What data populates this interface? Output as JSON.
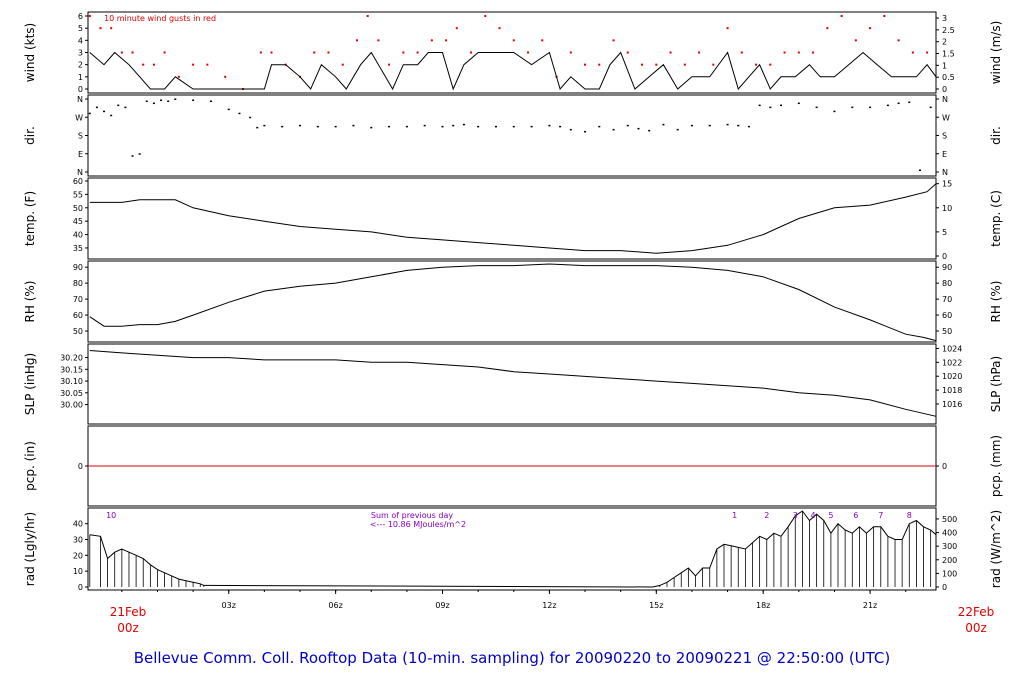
{
  "footer": {
    "title": "Bellevue Comm. Coll. Rooftop Data (10-min. sampling) for 20090220  to  20090221 @ 22:50:00  (UTC)"
  },
  "chart_data": {
    "type": "line",
    "x_axis": {
      "ticks": [
        "03z",
        "06z",
        "09z",
        "12z",
        "15z",
        "18z",
        "21z"
      ],
      "tick_hours": [
        3,
        6,
        9,
        12,
        15,
        18,
        21
      ],
      "start": {
        "day": "21Feb",
        "time": "00z"
      },
      "end": {
        "day": "22Feb",
        "time": "00z"
      },
      "range_hours": [
        -0.95,
        22.85
      ]
    },
    "panels": [
      {
        "id": "wind",
        "ylabel_left": "wind (kts)",
        "ylabel_right": "wind (m/s)",
        "ylim": [
          0,
          6
        ],
        "left_ticks": [
          "0",
          "1",
          "2",
          "3",
          "4",
          "5",
          "6"
        ],
        "right_ticks": [
          "0",
          "0.5",
          "1",
          "1.5",
          "2",
          "2.5",
          "3"
        ],
        "note": "10  minute wind gusts in red",
        "series": [
          {
            "x": [
              -0.9,
              -0.5,
              -0.2,
              0.2,
              0.5,
              0.8,
              1.2,
              1.5,
              2.0,
              2.5,
              3.0,
              3.5,
              4.0,
              4.2,
              4.6,
              5.0,
              5.3,
              5.6,
              6.0,
              6.3,
              6.7,
              7.0,
              7.4,
              7.6,
              7.9,
              8.3,
              8.6,
              9.0,
              9.3,
              9.6,
              10.0,
              10.5,
              11.0,
              11.5,
              12.0,
              12.3,
              12.6,
              13.0,
              13.4,
              13.7,
              14.0,
              14.4,
              14.8,
              15.2,
              15.6,
              16.0,
              16.5,
              17.0,
              17.3,
              17.6,
              17.9,
              18.2,
              18.5,
              18.9,
              19.3,
              19.6,
              20.0,
              20.4,
              20.8,
              21.2,
              21.6,
              22.0,
              22.3,
              22.6,
              22.85
            ],
            "y": [
              3,
              2,
              3,
              2,
              1,
              0,
              0,
              1,
              0,
              0,
              0,
              0,
              0,
              2,
              2,
              1,
              0,
              2,
              1,
              0,
              2,
              3,
              1,
              0,
              2,
              2,
              3,
              3,
              0,
              2,
              3,
              3,
              3,
              2,
              3,
              0,
              1,
              0,
              0,
              2,
              3,
              0,
              1,
              2,
              0,
              1,
              1,
              3,
              0,
              1,
              2,
              0,
              1,
              1,
              2,
              1,
              1,
              2,
              3,
              2,
              1,
              1,
              1,
              2,
              1
            ]
          }
        ],
        "gusts": {
          "x": [
            -0.9,
            -0.6,
            -0.3,
            0.0,
            0.3,
            0.6,
            0.9,
            1.2,
            1.6,
            2.0,
            2.4,
            2.9,
            3.4,
            3.9,
            4.2,
            4.6,
            5.0,
            5.4,
            5.8,
            6.2,
            6.6,
            6.9,
            7.2,
            7.5,
            7.9,
            8.3,
            8.7,
            9.1,
            9.4,
            9.8,
            10.2,
            10.6,
            11.0,
            11.4,
            11.8,
            12.2,
            12.6,
            13.0,
            13.4,
            13.8,
            14.2,
            14.6,
            15.0,
            15.4,
            15.8,
            16.2,
            16.6,
            17.0,
            17.4,
            17.8,
            18.2,
            18.6,
            19.0,
            19.4,
            19.8,
            20.2,
            20.6,
            21.0,
            21.4,
            21.8,
            22.2,
            22.6
          ],
          "y": [
            6,
            5,
            5,
            3,
            3,
            2,
            2,
            3,
            1,
            2,
            2,
            1,
            0,
            3,
            3,
            2,
            1,
            3,
            3,
            2,
            4,
            6,
            4,
            2,
            3,
            3,
            4,
            4,
            5,
            3,
            6,
            5,
            4,
            3,
            4,
            1,
            3,
            2,
            2,
            4,
            3,
            2,
            2,
            3,
            2,
            3,
            2,
            5,
            3,
            2,
            2,
            3,
            3,
            3,
            5,
            6,
            4,
            5,
            6,
            4,
            3,
            3
          ]
        }
      },
      {
        "id": "dir",
        "ylabel_left": "dir.",
        "ylabel_right": "dir.",
        "ylim": [
          0,
          360
        ],
        "left_ticks": [
          "N",
          "E",
          "S",
          "W",
          "N"
        ],
        "right_ticks": [
          "N",
          "E",
          "S",
          "W",
          "N"
        ],
        "series": [
          {
            "x": [
              -0.9,
              -0.7,
              -0.5,
              -0.3,
              -0.1,
              0.1,
              0.3,
              0.5,
              0.7,
              0.9,
              1.1,
              1.3,
              1.5,
              2.0,
              2.5,
              3.0,
              3.3,
              3.6,
              3.8,
              4.0,
              4.5,
              5.0,
              5.5,
              6.0,
              6.5,
              7.0,
              7.5,
              8.0,
              8.5,
              9.0,
              9.3,
              9.6,
              10.0,
              10.5,
              11.0,
              11.5,
              12.0,
              12.3,
              12.6,
              13.0,
              13.4,
              13.8,
              14.2,
              14.5,
              14.8,
              15.2,
              15.6,
              16.0,
              16.5,
              17.0,
              17.3,
              17.6,
              17.9,
              18.2,
              18.5,
              19.0,
              19.5,
              20.0,
              20.5,
              21.0,
              21.5,
              21.8,
              22.1,
              22.4,
              22.7
            ],
            "y": [
              290,
              320,
              300,
              280,
              330,
              320,
              80,
              90,
              350,
              340,
              355,
              350,
              360,
              355,
              350,
              310,
              290,
              270,
              220,
              230,
              225,
              230,
              225,
              225,
              230,
              220,
              225,
              225,
              230,
              225,
              230,
              235,
              225,
              225,
              225,
              225,
              230,
              225,
              210,
              200,
              225,
              210,
              230,
              215,
              205,
              235,
              210,
              230,
              230,
              235,
              230,
              225,
              330,
              320,
              330,
              340,
              320,
              300,
              320,
              320,
              330,
              340,
              345,
              10,
              320
            ]
          }
        ]
      },
      {
        "id": "temp",
        "ylabel_left": "temp. (F)",
        "ylabel_right": "temp. (C)",
        "ylim": [
          32,
          60
        ],
        "left_ticks": [
          "35",
          "40",
          "45",
          "50",
          "55",
          "60"
        ],
        "right_ticks": [
          "0",
          "5",
          "10",
          "15"
        ],
        "series": [
          {
            "x": [
              -0.9,
              0.0,
              0.5,
              1.5,
              2.0,
              3.0,
              4.0,
              5.0,
              6.0,
              7.0,
              8.0,
              9.0,
              10.0,
              11.0,
              12.0,
              13.0,
              14.0,
              15.0,
              16.0,
              17.0,
              18.0,
              19.0,
              20.0,
              21.0,
              22.0,
              22.6,
              22.85
            ],
            "y": [
              52,
              52,
              53,
              53,
              50,
              47,
              45,
              43,
              42,
              41,
              39,
              38,
              37,
              36,
              35,
              34,
              34,
              33,
              34,
              36,
              40,
              46,
              50,
              51,
              54,
              56,
              59
            ]
          }
        ]
      },
      {
        "id": "rh",
        "ylabel_left": "RH (%)",
        "ylabel_right": "RH (%)",
        "ylim": [
          45,
          92
        ],
        "left_ticks": [
          "50",
          "60",
          "70",
          "80",
          "90"
        ],
        "right_ticks": [
          "50",
          "60",
          "70",
          "80",
          "90"
        ],
        "series": [
          {
            "x": [
              -0.9,
              -0.5,
              0.0,
              0.5,
              1.0,
              1.5,
              2.0,
              3.0,
              4.0,
              5.0,
              6.0,
              7.0,
              8.0,
              9.0,
              10.0,
              11.0,
              12.0,
              13.0,
              14.0,
              15.0,
              16.0,
              17.0,
              18.0,
              19.0,
              20.0,
              21.0,
              22.0,
              22.5,
              22.85
            ],
            "y": [
              59,
              53,
              53,
              54,
              54,
              56,
              60,
              68,
              75,
              78,
              80,
              84,
              88,
              90,
              91,
              91,
              92,
              91,
              91,
              91,
              90,
              88,
              84,
              76,
              65,
              57,
              48,
              46,
              44
            ]
          }
        ]
      },
      {
        "id": "slp",
        "ylabel_left": "SLP (inHg)",
        "ylabel_right": "SLP (hPa)",
        "ylim": [
          29.93,
          30.245
        ],
        "left_ticks": [
          "30.00",
          "30.05",
          "30.10",
          "30.15",
          "30.20"
        ],
        "right_ticks": [
          "1016",
          "1018",
          "1020",
          "1022",
          "1024"
        ],
        "series": [
          {
            "x": [
              -0.9,
              0.0,
              1.0,
              2.0,
              3.0,
              4.0,
              5.0,
              6.0,
              7.0,
              8.0,
              9.0,
              10.0,
              11.0,
              12.0,
              13.0,
              14.0,
              15.0,
              16.0,
              17.0,
              18.0,
              19.0,
              20.0,
              21.0,
              22.0,
              22.85
            ],
            "y": [
              30.23,
              30.22,
              30.21,
              30.2,
              30.2,
              30.19,
              30.19,
              30.19,
              30.18,
              30.18,
              30.17,
              30.16,
              30.14,
              30.13,
              30.12,
              30.11,
              30.1,
              30.09,
              30.08,
              30.07,
              30.05,
              30.04,
              30.02,
              29.98,
              29.95
            ]
          }
        ]
      },
      {
        "id": "pcp",
        "ylabel_left": "pcp. (in)",
        "ylabel_right": "pcp. (mm)",
        "left_ticks": [
          "0"
        ],
        "right_ticks": [
          "0"
        ],
        "series": [
          {
            "x": [
              -0.95,
              22.85
            ],
            "y": [
              0,
              0
            ]
          }
        ]
      },
      {
        "id": "rad",
        "ylabel_left": "rad (Lgly/hr)",
        "ylabel_right": "rad (W/m^2)",
        "ylim": [
          0,
          48
        ],
        "left_ticks": [
          "0",
          "10",
          "20",
          "30",
          "40"
        ],
        "right_ticks": [
          "0",
          "100",
          "200",
          "300",
          "400",
          "500"
        ],
        "annotation_lines": [
          "Sum of previous day",
          "<--- 10.86 MJoules/m^2"
        ],
        "hour_labels": {
          "x": [
            -0.3,
            17.2,
            18.1,
            18.9,
            19.4,
            19.9,
            20.6,
            21.3,
            22.1
          ],
          "labels": [
            "10",
            "1",
            "2",
            "3",
            "4",
            "5",
            "6",
            "7",
            "8"
          ]
        },
        "series": [
          {
            "x": [
              -0.9,
              -0.6,
              -0.4,
              -0.2,
              0.0,
              0.2,
              0.4,
              0.6,
              0.8,
              1.0,
              1.2,
              1.4,
              1.6,
              1.8,
              2.0,
              2.2,
              2.3,
              14.9,
              15.1,
              15.3,
              15.5,
              15.7,
              15.9,
              16.1,
              16.3,
              16.5,
              16.7,
              16.9,
              17.1,
              17.3,
              17.5,
              17.7,
              17.9,
              18.1,
              18.3,
              18.5,
              18.7,
              18.9,
              19.1,
              19.3,
              19.5,
              19.7,
              19.9,
              20.1,
              20.3,
              20.5,
              20.7,
              20.9,
              21.1,
              21.3,
              21.5,
              21.7,
              21.9,
              22.1,
              22.3,
              22.5,
              22.7,
              22.85
            ],
            "y": [
              33,
              32,
              18,
              22,
              24,
              22,
              20,
              18,
              14,
              11,
              9,
              7,
              5,
              4,
              3,
              2,
              1,
              0,
              1,
              3,
              6,
              9,
              12,
              7,
              12,
              12,
              24,
              27,
              26,
              25,
              24,
              28,
              32,
              30,
              34,
              32,
              38,
              45,
              48,
              42,
              46,
              42,
              34,
              40,
              36,
              34,
              38,
              34,
              38,
              38,
              32,
              30,
              30,
              40,
              42,
              38,
              36,
              33
            ]
          }
        ]
      }
    ]
  }
}
